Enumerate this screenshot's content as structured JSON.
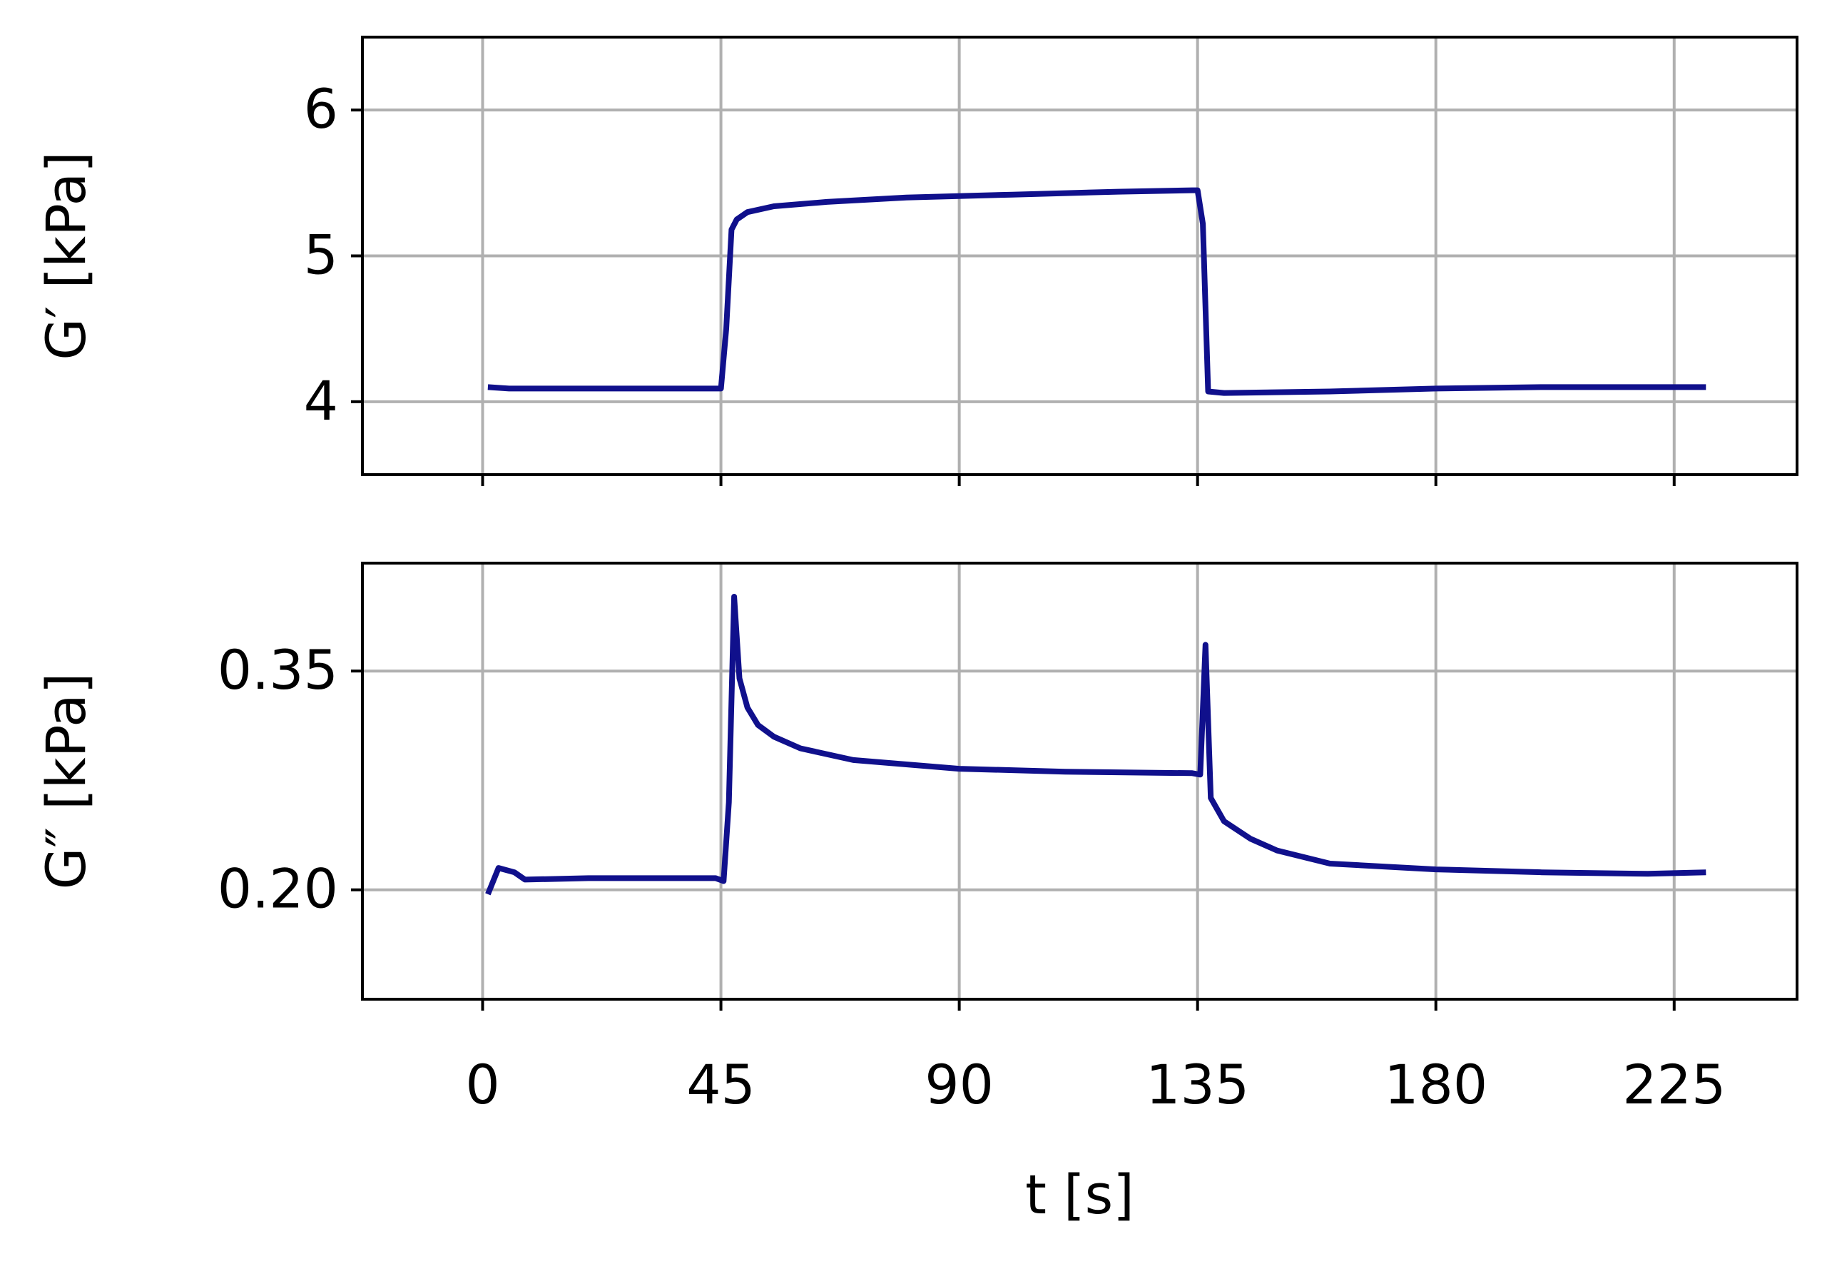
{
  "chart_data": [
    {
      "type": "line",
      "ylabel": "G′ [kPa]",
      "xlim": [
        -22.7,
        248.2
      ],
      "xticks": [
        0,
        45,
        90,
        135,
        180,
        225
      ],
      "xticklabels": false,
      "ylim": [
        3.5,
        6.5
      ],
      "yticks": [
        4,
        5,
        6
      ],
      "grid": true,
      "x": [
        1,
        5,
        20,
        45,
        46,
        47,
        48,
        50,
        55,
        65,
        80,
        100,
        120,
        134,
        135,
        136,
        137,
        140,
        160,
        180,
        200,
        231
      ],
      "series": [
        {
          "color": "#10108c",
          "values": [
            4.1,
            4.09,
            4.09,
            4.09,
            4.5,
            5.18,
            5.25,
            5.3,
            5.34,
            5.37,
            5.4,
            5.42,
            5.44,
            5.45,
            5.45,
            5.22,
            4.07,
            4.06,
            4.07,
            4.09,
            4.1,
            4.1
          ]
        }
      ]
    },
    {
      "type": "line",
      "ylabel": "G″ [kPa]",
      "xlabel": "t [s]",
      "xlim": [
        -22.7,
        248.2
      ],
      "xticks": [
        0,
        45,
        90,
        135,
        180,
        225
      ],
      "xticklabels": true,
      "ylim": [
        0.125,
        0.424
      ],
      "yticks": [
        {
          "value": 0.2,
          "label": "0.20"
        },
        0.35
      ],
      "grid": true,
      "x": [
        1,
        3,
        6,
        8,
        20,
        35,
        44,
        45.5,
        46.5,
        47.5,
        48.5,
        50,
        52,
        55,
        60,
        70,
        80,
        90,
        110,
        134,
        135.5,
        136.5,
        137.5,
        140,
        145,
        150,
        160,
        180,
        200,
        220,
        231
      ],
      "series": [
        {
          "color": "#10108c",
          "values": [
            0.197,
            0.215,
            0.212,
            0.207,
            0.208,
            0.208,
            0.208,
            0.206,
            0.26,
            0.401,
            0.345,
            0.325,
            0.313,
            0.305,
            0.297,
            0.289,
            0.286,
            0.283,
            0.281,
            0.28,
            0.279,
            0.368,
            0.263,
            0.247,
            0.235,
            0.227,
            0.218,
            0.214,
            0.212,
            0.211,
            0.212
          ]
        }
      ]
    }
  ]
}
